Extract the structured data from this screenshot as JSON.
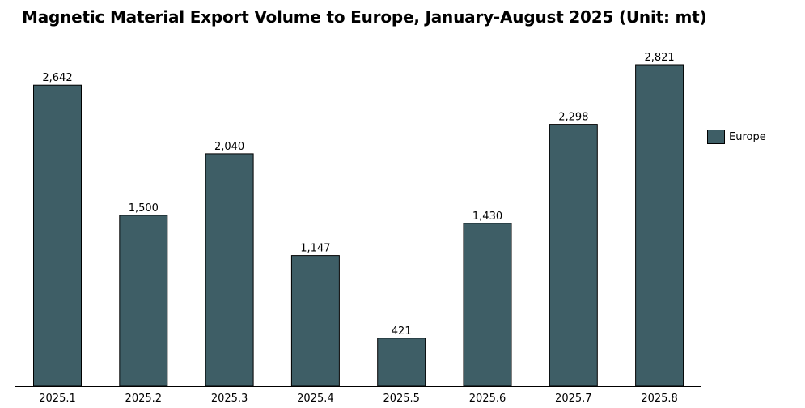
{
  "chart_data": {
    "type": "bar",
    "title": "Magnetic Material Export Volume to Europe, January-August 2025 (Unit: mt)",
    "categories": [
      "2025.1",
      "2025.2",
      "2025.3",
      "2025.4",
      "2025.5",
      "2025.6",
      "2025.7",
      "2025.8"
    ],
    "series": [
      {
        "name": "Europe",
        "values": [
          2642,
          1500,
          2040,
          1147,
          421,
          1430,
          2298,
          2821
        ]
      }
    ],
    "data_labels": [
      "2,642",
      "1,500",
      "2,040",
      "1,147",
      "421",
      "1,430",
      "2,298",
      "2,821"
    ],
    "ylim": [
      0,
      3000
    ],
    "grid": false,
    "legend_position": "right",
    "xlabel": "",
    "ylabel": "",
    "colors": {
      "bar": "#3e5e66",
      "bar_border": "#000000"
    }
  }
}
